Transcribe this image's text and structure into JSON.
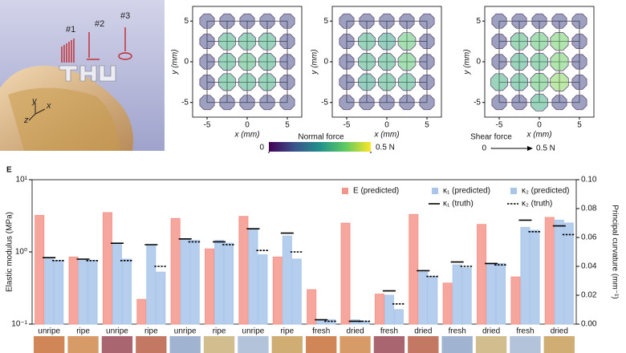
{
  "illustration": {
    "labels": [
      "#1",
      "#2",
      "#3"
    ],
    "axes": [
      "x",
      "y",
      "z"
    ]
  },
  "normal_force_scale": {
    "title": "Normal force",
    "colormap": "viridis",
    "ticks": [
      0,
      {
        "value": 0.5,
        "label": "0.5 N"
      }
    ]
  },
  "shear_force_scale": {
    "title": "Shear force",
    "ticks": [
      0,
      {
        "value": 0.5,
        "label": "0.5 N"
      }
    ]
  },
  "panel_label": "E",
  "chart_data": [
    {
      "type": "mesh",
      "xlabel": "x (mm)",
      "ylabel": "y (mm)",
      "xlim": [
        -6.8,
        6.8
      ],
      "ylim": [
        -6.8,
        6.8
      ],
      "xticks": [
        -5,
        0,
        5
      ],
      "yticks": [
        -5,
        0,
        5
      ],
      "x": [
        -5,
        -2.5,
        0,
        2.5,
        5
      ],
      "y": [
        5,
        2.5,
        0,
        -2.5,
        -5
      ],
      "values": [
        [
          0.1,
          0.1,
          0.1,
          0.1,
          0.1
        ],
        [
          0.1,
          0.3,
          0.3,
          0.3,
          0.1
        ],
        [
          0.1,
          0.3,
          0.32,
          0.3,
          0.1
        ],
        [
          0.1,
          0.3,
          0.3,
          0.3,
          0.1
        ],
        [
          0.1,
          0.1,
          0.1,
          0.1,
          0.1
        ]
      ]
    },
    {
      "type": "mesh",
      "xlabel": "x (mm)",
      "ylabel": "y (mm)",
      "xlim": [
        -6.8,
        6.8
      ],
      "ylim": [
        -6.8,
        6.8
      ],
      "xticks": [
        -5,
        0,
        5
      ],
      "yticks": [
        -5,
        0,
        5
      ],
      "x": [
        -5,
        -2.5,
        0,
        2.5,
        5
      ],
      "y": [
        5,
        2.5,
        0,
        -2.5,
        -5
      ],
      "values": [
        [
          0.1,
          0.1,
          0.1,
          0.1,
          0.1
        ],
        [
          0.1,
          0.3,
          0.28,
          0.35,
          0.1
        ],
        [
          0.1,
          0.3,
          0.3,
          0.35,
          0.1
        ],
        [
          0.1,
          0.28,
          0.3,
          0.3,
          0.1
        ],
        [
          0.1,
          0.1,
          0.1,
          0.1,
          0.1
        ]
      ]
    },
    {
      "type": "mesh",
      "xlabel": "x (mm)",
      "ylabel": "y (mm)",
      "xlim": [
        -6.8,
        6.8
      ],
      "ylim": [
        -6.8,
        6.8
      ],
      "xticks": [
        -5,
        0,
        5
      ],
      "yticks": [
        -5,
        0,
        5
      ],
      "x": [
        -5,
        -2.5,
        0,
        2.5,
        5
      ],
      "y": [
        5,
        2.5,
        0,
        -2.5,
        -5
      ],
      "values": [
        [
          0.1,
          0.1,
          0.1,
          0.1,
          0.1
        ],
        [
          0.1,
          0.32,
          0.35,
          0.38,
          0.1
        ],
        [
          0.1,
          0.3,
          0.32,
          0.38,
          0.1
        ],
        [
          0.3,
          0.3,
          0.35,
          0.4,
          0.1
        ],
        [
          0.1,
          0.1,
          0.3,
          0.1,
          0.1
        ]
      ]
    },
    {
      "type": "bar",
      "ylabel": "Elastic modulus (MPa)",
      "y2label": "Principal curvature (mm⁻¹)",
      "yscale": "log",
      "ylim": [
        0.1,
        10
      ],
      "yticks": [
        {
          "value": 0.1,
          "label": "10⁻¹"
        },
        {
          "value": 1,
          "label": "10⁰"
        },
        {
          "value": 10,
          "label": "10¹"
        }
      ],
      "y2lim": [
        0,
        0.1
      ],
      "y2ticks": [
        {
          "value": 0,
          "label": "0.00"
        },
        {
          "value": 0.02,
          "label": "0.02"
        },
        {
          "value": 0.04,
          "label": "0.04"
        },
        {
          "value": 0.06,
          "label": "0.06"
        },
        {
          "value": 0.08,
          "label": "0.08"
        },
        {
          "value": 0.1,
          "label": "0.10"
        }
      ],
      "categories": [
        "unripe",
        "ripe",
        "unripe",
        "ripe",
        "unripe",
        "ripe",
        "unripe",
        "ripe",
        "fresh",
        "dried",
        "fresh",
        "dried",
        "fresh",
        "dried",
        "fresh",
        "dried"
      ],
      "series": [
        {
          "name": "E (predicted)",
          "color": "#f4968c",
          "axis": "y",
          "values": [
            3.2,
            0.85,
            3.5,
            0.22,
            2.9,
            1.1,
            3.1,
            0.85,
            0.3,
            2.5,
            0.26,
            3.3,
            0.37,
            2.4,
            0.45,
            3.0
          ]
        },
        {
          "name": "κ₁ (predicted)",
          "color": "#a9c6ea",
          "axis": "y2",
          "values": [
            0.045,
            0.045,
            0.056,
            0.055,
            0.059,
            0.058,
            0.066,
            0.061,
            0.003,
            0.003,
            0.02,
            0.036,
            0.041,
            0.042,
            0.067,
            0.072
          ]
        },
        {
          "name": "κ₂ (predicted)",
          "color": "#a9c6ea",
          "axis": "y2",
          "values": [
            0.044,
            0.044,
            0.045,
            0.036,
            0.058,
            0.056,
            0.048,
            0.045,
            0.003,
            0.002,
            0.01,
            0.033,
            0.039,
            0.042,
            0.065,
            0.07
          ]
        },
        {
          "name": "κ₁ (truth)",
          "color": "#000000",
          "axis": "y2",
          "dash": false,
          "values": [
            0.046,
            0.045,
            0.056,
            0.055,
            0.059,
            0.057,
            0.066,
            0.063,
            0.003,
            0.002,
            0.023,
            0.037,
            0.043,
            0.042,
            0.072,
            0.068
          ]
        },
        {
          "name": "κ₂ (truth)",
          "color": "#000000",
          "axis": "y2",
          "dash": true,
          "values": [
            0.044,
            0.044,
            0.044,
            0.04,
            0.057,
            0.055,
            0.051,
            0.05,
            0.002,
            0.002,
            0.014,
            0.033,
            0.04,
            0.041,
            0.064,
            0.062
          ]
        }
      ]
    }
  ]
}
